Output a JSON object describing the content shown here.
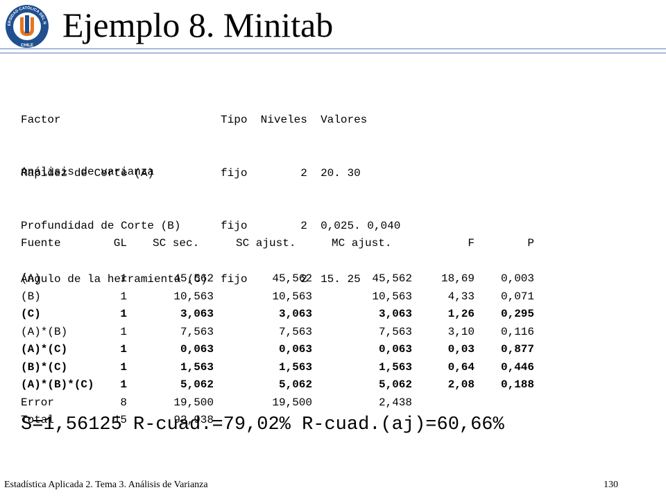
{
  "header": {
    "title": "Ejemplo 8. Minitab",
    "logo": {
      "top_text": "UNIVERSIDAD CATÓLICA DEL NORTE",
      "bottom_text": "CHILE",
      "colors": {
        "ring": "#1f4f8f",
        "inner": "#ffffff",
        "mark_orange": "#e8741c",
        "mark_blue": "#1f4f8f"
      }
    },
    "rule_color": "#5b7fb7"
  },
  "factors_table": {
    "header_line": "Factor                        Tipo  Niveles  Valores",
    "lines": [
      "Rapidez de Corte (A)          fijo        2  20. 30",
      "Profundidad de Corte (B)      fijo        2  0,025. 0,040",
      "Ángulo de la herramienta (C)  fijo        2  15. 25"
    ]
  },
  "anova": {
    "title": "Análisis de varianza",
    "headers": [
      "Fuente",
      "GL",
      "SC sec.",
      "SC ajust.",
      "MC ajust.",
      "F",
      "P"
    ],
    "rows": [
      {
        "fuente": "(A)",
        "gl": "1",
        "sc_sec": "45,562",
        "sc_ajust": "45,562",
        "mc_ajust": "45,562",
        "f": "18,69",
        "p": "0,003",
        "bold": false
      },
      {
        "fuente": "(B)",
        "gl": "1",
        "sc_sec": "10,563",
        "sc_ajust": "10,563",
        "mc_ajust": "10,563",
        "f": "4,33",
        "p": "0,071",
        "bold": false
      },
      {
        "fuente": "(C)",
        "gl": "1",
        "sc_sec": "3,063",
        "sc_ajust": "3,063",
        "mc_ajust": "3,063",
        "f": "1,26",
        "p": "0,295",
        "bold": true
      },
      {
        "fuente": "(A)*(B)",
        "gl": "1",
        "sc_sec": "7,563",
        "sc_ajust": "7,563",
        "mc_ajust": "7,563",
        "f": "3,10",
        "p": "0,116",
        "bold": false
      },
      {
        "fuente": "(A)*(C)",
        "gl": "1",
        "sc_sec": "0,063",
        "sc_ajust": "0,063",
        "mc_ajust": "0,063",
        "f": "0,03",
        "p": "0,877",
        "bold": true
      },
      {
        "fuente": "(B)*(C)",
        "gl": "1",
        "sc_sec": "1,563",
        "sc_ajust": "1,563",
        "mc_ajust": "1,563",
        "f": "0,64",
        "p": "0,446",
        "bold": true
      },
      {
        "fuente": "(A)*(B)*(C)",
        "gl": "1",
        "sc_sec": "5,062",
        "sc_ajust": "5,062",
        "mc_ajust": "5,062",
        "f": "2,08",
        "p": "0,188",
        "bold": true
      },
      {
        "fuente": "Error",
        "gl": "8",
        "sc_sec": "19,500",
        "sc_ajust": "19,500",
        "mc_ajust": "2,438",
        "f": "",
        "p": "",
        "bold": false
      },
      {
        "fuente": "Total",
        "gl": "15",
        "sc_sec": "92,938",
        "sc_ajust": "",
        "mc_ajust": "",
        "f": "",
        "p": "",
        "bold": false
      }
    ]
  },
  "summary": "S=1,56125 R-cuad.=79,02% R-cuad.(aj)=60,66%",
  "footer": {
    "left": "Estadística Aplicada 2. Tema 3. Análisis de Varianza",
    "right": "130"
  }
}
